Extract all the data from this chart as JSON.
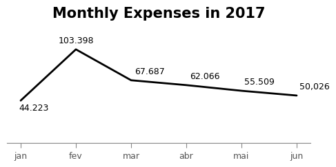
{
  "title": "Monthly Expenses in 2017",
  "categories": [
    "jan",
    "fev",
    "mar",
    "abr",
    "mai",
    "jun"
  ],
  "values": [
    44.223,
    103.398,
    67.687,
    62.066,
    55.509,
    50.026
  ],
  "labels": [
    "44.223",
    "103.398",
    "67.687",
    "62.066",
    "55.509",
    "50,026"
  ],
  "line_color": "#000000",
  "line_width": 2.0,
  "background_color": "#ffffff",
  "title_fontsize": 15,
  "label_fontsize": 9,
  "tick_fontsize": 9,
  "ylim": [
    -5,
    125
  ],
  "label_ha": [
    "left",
    "center",
    "left",
    "left",
    "left",
    "left"
  ],
  "label_va": [
    "top",
    "bottom",
    "bottom",
    "bottom",
    "bottom",
    "bottom"
  ],
  "label_offsets_x": [
    -2,
    0,
    4,
    4,
    3,
    3
  ],
  "label_offsets_y": [
    -3,
    5,
    5,
    5,
    5,
    5
  ]
}
